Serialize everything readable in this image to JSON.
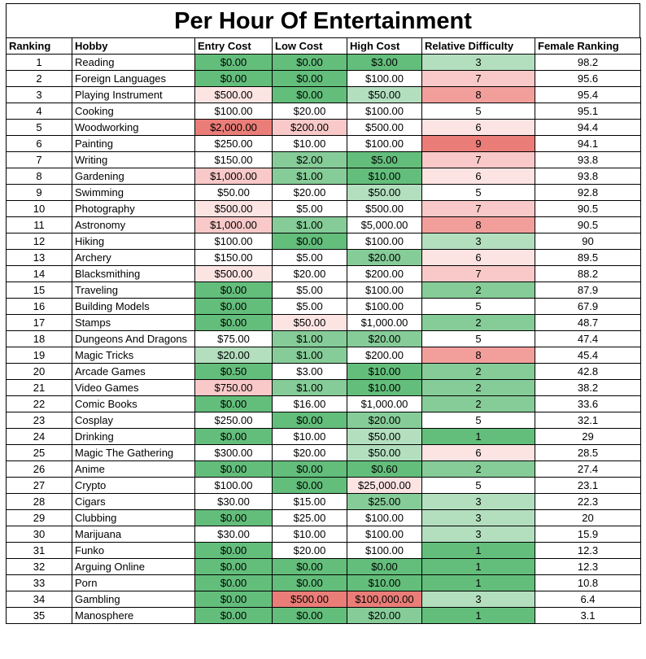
{
  "title": "Per Hour Of Entertainment",
  "columns": [
    "Ranking",
    "Hobby",
    "Entry Cost",
    "Low Cost",
    "High Cost",
    "Relative Difficulty",
    "Female Ranking"
  ],
  "palette": {
    "green_dark": "#63be7b",
    "green_mid": "#86cc98",
    "green_light": "#b3dfbf",
    "white": "#ffffff",
    "red_faint": "#fce4e3",
    "red_light": "#f8c9c8",
    "red_mid": "#f29f9c",
    "red_dark": "#eb7d78"
  },
  "rows": [
    {
      "rank": "1",
      "hobby": "Reading",
      "entry": "$0.00",
      "entry_c": "green_dark",
      "low": "$0.00",
      "low_c": "green_dark",
      "high": "$3.00",
      "high_c": "green_dark",
      "diff": "3",
      "diff_c": "green_light",
      "female": "98.2"
    },
    {
      "rank": "2",
      "hobby": "Foreign Languages",
      "entry": "$0.00",
      "entry_c": "green_dark",
      "low": "$0.00",
      "low_c": "green_dark",
      "high": "$100.00",
      "high_c": "white",
      "diff": "7",
      "diff_c": "red_light",
      "female": "95.6"
    },
    {
      "rank": "3",
      "hobby": "Playing Instrument",
      "entry": "$500.00",
      "entry_c": "red_faint",
      "low": "$0.00",
      "low_c": "green_dark",
      "high": "$50.00",
      "high_c": "green_light",
      "diff": "8",
      "diff_c": "red_mid",
      "female": "95.4"
    },
    {
      "rank": "4",
      "hobby": "Cooking",
      "entry": "$100.00",
      "entry_c": "white",
      "low": "$20.00",
      "low_c": "white",
      "high": "$100.00",
      "high_c": "white",
      "diff": "5",
      "diff_c": "white",
      "female": "95.1"
    },
    {
      "rank": "5",
      "hobby": "Woodworking",
      "entry": "$2,000.00",
      "entry_c": "red_dark",
      "low": "$200.00",
      "low_c": "red_light",
      "high": "$500.00",
      "high_c": "white",
      "diff": "6",
      "diff_c": "red_faint",
      "female": "94.4"
    },
    {
      "rank": "6",
      "hobby": "Painting",
      "entry": "$250.00",
      "entry_c": "white",
      "low": "$10.00",
      "low_c": "white",
      "high": "$100.00",
      "high_c": "white",
      "diff": "9",
      "diff_c": "red_dark",
      "female": "94.1"
    },
    {
      "rank": "7",
      "hobby": "Writing",
      "entry": "$150.00",
      "entry_c": "white",
      "low": "$2.00",
      "low_c": "green_mid",
      "high": "$5.00",
      "high_c": "green_dark",
      "diff": "7",
      "diff_c": "red_light",
      "female": "93.8"
    },
    {
      "rank": "8",
      "hobby": "Gardening",
      "entry": "$1,000.00",
      "entry_c": "red_light",
      "low": "$1.00",
      "low_c": "green_mid",
      "high": "$10.00",
      "high_c": "green_dark",
      "diff": "6",
      "diff_c": "red_faint",
      "female": "93.8"
    },
    {
      "rank": "9",
      "hobby": "Swimming",
      "entry": "$50.00",
      "entry_c": "white",
      "low": "$20.00",
      "low_c": "white",
      "high": "$50.00",
      "high_c": "green_light",
      "diff": "5",
      "diff_c": "white",
      "female": "92.8"
    },
    {
      "rank": "10",
      "hobby": "Photography",
      "entry": "$500.00",
      "entry_c": "red_faint",
      "low": "$5.00",
      "low_c": "white",
      "high": "$500.00",
      "high_c": "white",
      "diff": "7",
      "diff_c": "red_light",
      "female": "90.5"
    },
    {
      "rank": "11",
      "hobby": "Astronomy",
      "entry": "$1,000.00",
      "entry_c": "red_light",
      "low": "$1.00",
      "low_c": "green_mid",
      "high": "$5,000.00",
      "high_c": "white",
      "diff": "8",
      "diff_c": "red_mid",
      "female": "90.5"
    },
    {
      "rank": "12",
      "hobby": "Hiking",
      "entry": "$100.00",
      "entry_c": "white",
      "low": "$0.00",
      "low_c": "green_dark",
      "high": "$100.00",
      "high_c": "white",
      "diff": "3",
      "diff_c": "green_light",
      "female": "90"
    },
    {
      "rank": "13",
      "hobby": "Archery",
      "entry": "$150.00",
      "entry_c": "white",
      "low": "$5.00",
      "low_c": "white",
      "high": "$20.00",
      "high_c": "green_mid",
      "diff": "6",
      "diff_c": "red_faint",
      "female": "89.5"
    },
    {
      "rank": "14",
      "hobby": "Blacksmithing",
      "entry": "$500.00",
      "entry_c": "red_faint",
      "low": "$20.00",
      "low_c": "white",
      "high": "$200.00",
      "high_c": "white",
      "diff": "7",
      "diff_c": "red_light",
      "female": "88.2"
    },
    {
      "rank": "15",
      "hobby": "Traveling",
      "entry": "$0.00",
      "entry_c": "green_dark",
      "low": "$5.00",
      "low_c": "white",
      "high": "$100.00",
      "high_c": "white",
      "diff": "2",
      "diff_c": "green_mid",
      "female": "87.9"
    },
    {
      "rank": "16",
      "hobby": "Building Models",
      "entry": "$0.00",
      "entry_c": "green_dark",
      "low": "$5.00",
      "low_c": "white",
      "high": "$100.00",
      "high_c": "white",
      "diff": "5",
      "diff_c": "white",
      "female": "67.9"
    },
    {
      "rank": "17",
      "hobby": "Stamps",
      "entry": "$0.00",
      "entry_c": "green_dark",
      "low": "$50.00",
      "low_c": "red_faint",
      "high": "$1,000.00",
      "high_c": "white",
      "diff": "2",
      "diff_c": "green_mid",
      "female": "48.7"
    },
    {
      "rank": "18",
      "hobby": "Dungeons And Dragons",
      "entry": "$75.00",
      "entry_c": "white",
      "low": "$1.00",
      "low_c": "green_mid",
      "high": "$20.00",
      "high_c": "green_mid",
      "diff": "5",
      "diff_c": "white",
      "female": "47.4"
    },
    {
      "rank": "19",
      "hobby": "Magic Tricks",
      "entry": "$20.00",
      "entry_c": "green_light",
      "low": "$1.00",
      "low_c": "green_mid",
      "high": "$200.00",
      "high_c": "white",
      "diff": "8",
      "diff_c": "red_mid",
      "female": "45.4"
    },
    {
      "rank": "20",
      "hobby": "Arcade Games",
      "entry": "$0.50",
      "entry_c": "green_dark",
      "low": "$3.00",
      "low_c": "white",
      "high": "$10.00",
      "high_c": "green_dark",
      "diff": "2",
      "diff_c": "green_mid",
      "female": "42.8"
    },
    {
      "rank": "21",
      "hobby": "Video Games",
      "entry": "$750.00",
      "entry_c": "red_light",
      "low": "$1.00",
      "low_c": "green_mid",
      "high": "$10.00",
      "high_c": "green_dark",
      "diff": "2",
      "diff_c": "green_mid",
      "female": "38.2"
    },
    {
      "rank": "22",
      "hobby": "Comic Books",
      "entry": "$0.00",
      "entry_c": "green_dark",
      "low": "$16.00",
      "low_c": "white",
      "high": "$1,000.00",
      "high_c": "white",
      "diff": "2",
      "diff_c": "green_mid",
      "female": "33.6"
    },
    {
      "rank": "23",
      "hobby": "Cosplay",
      "entry": "$250.00",
      "entry_c": "white",
      "low": "$0.00",
      "low_c": "green_dark",
      "high": "$20.00",
      "high_c": "green_mid",
      "diff": "5",
      "diff_c": "white",
      "female": "32.1"
    },
    {
      "rank": "24",
      "hobby": "Drinking",
      "entry": "$0.00",
      "entry_c": "green_dark",
      "low": "$10.00",
      "low_c": "white",
      "high": "$50.00",
      "high_c": "green_light",
      "diff": "1",
      "diff_c": "green_dark",
      "female": "29"
    },
    {
      "rank": "25",
      "hobby": "Magic The Gathering",
      "entry": "$300.00",
      "entry_c": "white",
      "low": "$20.00",
      "low_c": "white",
      "high": "$50.00",
      "high_c": "green_light",
      "diff": "6",
      "diff_c": "red_faint",
      "female": "28.5"
    },
    {
      "rank": "26",
      "hobby": "Anime",
      "entry": "$0.00",
      "entry_c": "green_dark",
      "low": "$0.00",
      "low_c": "green_dark",
      "high": "$0.60",
      "high_c": "green_dark",
      "diff": "2",
      "diff_c": "green_mid",
      "female": "27.4"
    },
    {
      "rank": "27",
      "hobby": "Crypto",
      "entry": "$100.00",
      "entry_c": "white",
      "low": "$0.00",
      "low_c": "green_dark",
      "high": "$25,000.00",
      "high_c": "red_faint",
      "diff": "5",
      "diff_c": "white",
      "female": "23.1"
    },
    {
      "rank": "28",
      "hobby": "Cigars",
      "entry": "$30.00",
      "entry_c": "white",
      "low": "$15.00",
      "low_c": "white",
      "high": "$25.00",
      "high_c": "green_mid",
      "diff": "3",
      "diff_c": "green_light",
      "female": "22.3"
    },
    {
      "rank": "29",
      "hobby": "Clubbing",
      "entry": "$0.00",
      "entry_c": "green_dark",
      "low": "$25.00",
      "low_c": "white",
      "high": "$100.00",
      "high_c": "white",
      "diff": "3",
      "diff_c": "green_light",
      "female": "20"
    },
    {
      "rank": "30",
      "hobby": "Marijuana",
      "entry": "$30.00",
      "entry_c": "white",
      "low": "$10.00",
      "low_c": "white",
      "high": "$100.00",
      "high_c": "white",
      "diff": "3",
      "diff_c": "green_light",
      "female": "15.9"
    },
    {
      "rank": "31",
      "hobby": "Funko",
      "entry": "$0.00",
      "entry_c": "green_dark",
      "low": "$20.00",
      "low_c": "white",
      "high": "$100.00",
      "high_c": "white",
      "diff": "1",
      "diff_c": "green_dark",
      "female": "12.3"
    },
    {
      "rank": "32",
      "hobby": "Arguing Online",
      "entry": "$0.00",
      "entry_c": "green_dark",
      "low": "$0.00",
      "low_c": "green_dark",
      "high": "$0.00",
      "high_c": "green_dark",
      "diff": "1",
      "diff_c": "green_dark",
      "female": "12.3"
    },
    {
      "rank": "33",
      "hobby": "Porn",
      "entry": "$0.00",
      "entry_c": "green_dark",
      "low": "$0.00",
      "low_c": "green_dark",
      "high": "$10.00",
      "high_c": "green_dark",
      "diff": "1",
      "diff_c": "green_dark",
      "female": "10.8"
    },
    {
      "rank": "34",
      "hobby": "Gambling",
      "entry": "$0.00",
      "entry_c": "green_dark",
      "low": "$500.00",
      "low_c": "red_dark",
      "high": "$100,000.00",
      "high_c": "red_dark",
      "diff": "3",
      "diff_c": "green_light",
      "female": "6.4"
    },
    {
      "rank": "35",
      "hobby": "Manosphere",
      "entry": "$0.00",
      "entry_c": "green_dark",
      "low": "$0.00",
      "low_c": "green_dark",
      "high": "$20.00",
      "high_c": "green_mid",
      "diff": "1",
      "diff_c": "green_dark",
      "female": "3.1"
    }
  ]
}
